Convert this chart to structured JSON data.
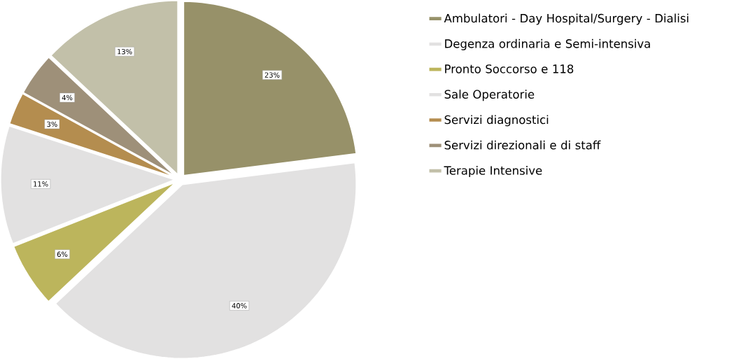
{
  "chart_data": {
    "type": "pie",
    "categories": [
      "Ambulatori - Day Hospital/Surgery - Dialisi",
      "Degenza ordinaria e Semi-intensiva",
      "Pronto Soccorso e 118",
      "Sale Operatorie",
      "Servizi diagnostici",
      "Servizi direzionali e di staff",
      "Terapie Intensive"
    ],
    "values": [
      23,
      40,
      6,
      11,
      3,
      4,
      13
    ],
    "value_labels": [
      "23%",
      "40%",
      "6%",
      "11%",
      "3%",
      "4%",
      "13%"
    ],
    "colors": [
      "#979169",
      "#e2e1e1",
      "#bcb55c",
      "#e2e1e1",
      "#b48d4f",
      "#9e9079",
      "#c2c0a9"
    ],
    "legend": "right"
  }
}
